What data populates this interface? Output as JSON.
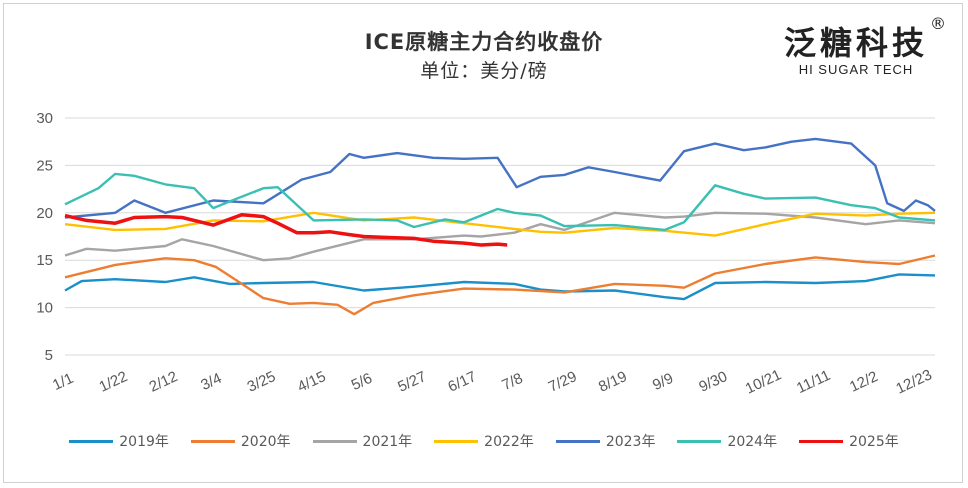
{
  "title": "ICE原糖主力合约收盘价",
  "subtitle": "单位：美分/磅",
  "brand": {
    "name": "泛糖科技",
    "sub": "HI SUGAR TECH",
    "reg": "®"
  },
  "chart_data": {
    "type": "line",
    "x_tick_labels": [
      "1/1",
      "1/22",
      "2/12",
      "3/4",
      "3/25",
      "4/15",
      "5/6",
      "5/27",
      "6/17",
      "7/8",
      "7/29",
      "8/19",
      "9/9",
      "9/30",
      "10/21",
      "11/11",
      "12/2",
      "12/23"
    ],
    "x_tick_days": [
      1,
      22,
      43,
      63,
      84,
      105,
      126,
      147,
      168,
      189,
      210,
      231,
      252,
      273,
      294,
      315,
      336,
      357
    ],
    "ylim": [
      5,
      30
    ],
    "yticks": [
      5,
      10,
      15,
      20,
      25,
      30
    ],
    "grid": true,
    "legend_position": "bottom",
    "series": [
      {
        "name": "2019年",
        "color": "#1a8fc9",
        "points": [
          [
            1,
            11.8
          ],
          [
            8,
            12.8
          ],
          [
            22,
            13.0
          ],
          [
            43,
            12.7
          ],
          [
            55,
            13.2
          ],
          [
            70,
            12.5
          ],
          [
            84,
            12.6
          ],
          [
            105,
            12.7
          ],
          [
            126,
            11.8
          ],
          [
            147,
            12.2
          ],
          [
            168,
            12.7
          ],
          [
            189,
            12.5
          ],
          [
            200,
            11.9
          ],
          [
            210,
            11.7
          ],
          [
            231,
            11.8
          ],
          [
            252,
            11.1
          ],
          [
            260,
            10.9
          ],
          [
            273,
            12.6
          ],
          [
            294,
            12.7
          ],
          [
            315,
            12.6
          ],
          [
            336,
            12.8
          ],
          [
            350,
            13.5
          ],
          [
            365,
            13.4
          ]
        ]
      },
      {
        "name": "2020年",
        "color": "#ed7d31",
        "points": [
          [
            1,
            13.2
          ],
          [
            22,
            14.5
          ],
          [
            43,
            15.2
          ],
          [
            55,
            15.0
          ],
          [
            64,
            14.3
          ],
          [
            75,
            12.5
          ],
          [
            84,
            11.0
          ],
          [
            95,
            10.4
          ],
          [
            105,
            10.5
          ],
          [
            115,
            10.3
          ],
          [
            122,
            9.3
          ],
          [
            130,
            10.5
          ],
          [
            147,
            11.3
          ],
          [
            168,
            12.0
          ],
          [
            189,
            11.9
          ],
          [
            210,
            11.6
          ],
          [
            231,
            12.5
          ],
          [
            252,
            12.3
          ],
          [
            260,
            12.1
          ],
          [
            273,
            13.6
          ],
          [
            294,
            14.6
          ],
          [
            315,
            15.3
          ],
          [
            336,
            14.8
          ],
          [
            350,
            14.6
          ],
          [
            365,
            15.5
          ]
        ]
      },
      {
        "name": "2021年",
        "color": "#a5a5a5",
        "points": [
          [
            1,
            15.5
          ],
          [
            10,
            16.2
          ],
          [
            22,
            16.0
          ],
          [
            43,
            16.5
          ],
          [
            50,
            17.2
          ],
          [
            63,
            16.5
          ],
          [
            84,
            15.0
          ],
          [
            95,
            15.2
          ],
          [
            105,
            15.9
          ],
          [
            126,
            17.2
          ],
          [
            147,
            17.2
          ],
          [
            168,
            17.6
          ],
          [
            175,
            17.5
          ],
          [
            189,
            17.9
          ],
          [
            200,
            18.8
          ],
          [
            210,
            18.2
          ],
          [
            231,
            20.0
          ],
          [
            252,
            19.5
          ],
          [
            260,
            19.6
          ],
          [
            273,
            20.0
          ],
          [
            294,
            19.9
          ],
          [
            315,
            19.5
          ],
          [
            336,
            18.8
          ],
          [
            350,
            19.2
          ],
          [
            365,
            18.9
          ]
        ]
      },
      {
        "name": "2022年",
        "color": "#ffc000",
        "points": [
          [
            1,
            18.8
          ],
          [
            22,
            18.2
          ],
          [
            43,
            18.3
          ],
          [
            63,
            19.2
          ],
          [
            84,
            19.1
          ],
          [
            105,
            20.0
          ],
          [
            126,
            19.2
          ],
          [
            147,
            19.5
          ],
          [
            168,
            18.9
          ],
          [
            189,
            18.3
          ],
          [
            200,
            18.0
          ],
          [
            210,
            17.9
          ],
          [
            231,
            18.4
          ],
          [
            252,
            18.1
          ],
          [
            273,
            17.6
          ],
          [
            294,
            18.8
          ],
          [
            315,
            19.9
          ],
          [
            336,
            19.7
          ],
          [
            350,
            19.9
          ],
          [
            365,
            20.0
          ]
        ]
      },
      {
        "name": "2023年",
        "color": "#4472c4",
        "points": [
          [
            1,
            19.5
          ],
          [
            22,
            20.0
          ],
          [
            30,
            21.3
          ],
          [
            43,
            20.0
          ],
          [
            63,
            21.3
          ],
          [
            84,
            21.0
          ],
          [
            100,
            23.5
          ],
          [
            112,
            24.3
          ],
          [
            120,
            26.2
          ],
          [
            126,
            25.8
          ],
          [
            140,
            26.3
          ],
          [
            155,
            25.8
          ],
          [
            168,
            25.7
          ],
          [
            182,
            25.8
          ],
          [
            190,
            22.7
          ],
          [
            200,
            23.8
          ],
          [
            210,
            24.0
          ],
          [
            220,
            24.8
          ],
          [
            231,
            24.3
          ],
          [
            250,
            23.4
          ],
          [
            260,
            26.5
          ],
          [
            273,
            27.3
          ],
          [
            285,
            26.6
          ],
          [
            294,
            26.9
          ],
          [
            305,
            27.5
          ],
          [
            315,
            27.8
          ],
          [
            330,
            27.3
          ],
          [
            340,
            25.0
          ],
          [
            345,
            21.0
          ],
          [
            352,
            20.2
          ],
          [
            357,
            21.3
          ],
          [
            362,
            20.8
          ],
          [
            365,
            20.2
          ]
        ]
      },
      {
        "name": "2024年",
        "color": "#3ac0b2",
        "points": [
          [
            1,
            20.9
          ],
          [
            15,
            22.6
          ],
          [
            22,
            24.1
          ],
          [
            30,
            23.9
          ],
          [
            43,
            23.0
          ],
          [
            55,
            22.6
          ],
          [
            63,
            20.5
          ],
          [
            70,
            21.2
          ],
          [
            84,
            22.6
          ],
          [
            90,
            22.7
          ],
          [
            105,
            19.2
          ],
          [
            126,
            19.3
          ],
          [
            140,
            19.2
          ],
          [
            147,
            18.5
          ],
          [
            160,
            19.3
          ],
          [
            168,
            19.0
          ],
          [
            182,
            20.4
          ],
          [
            189,
            20.0
          ],
          [
            200,
            19.7
          ],
          [
            210,
            18.6
          ],
          [
            231,
            18.7
          ],
          [
            252,
            18.2
          ],
          [
            260,
            19.0
          ],
          [
            273,
            22.9
          ],
          [
            285,
            22.0
          ],
          [
            294,
            21.5
          ],
          [
            315,
            21.6
          ],
          [
            330,
            20.8
          ],
          [
            340,
            20.5
          ],
          [
            350,
            19.5
          ],
          [
            365,
            19.2
          ]
        ]
      },
      {
        "name": "2025年",
        "color": "#ee1111",
        "points": [
          [
            1,
            19.7
          ],
          [
            10,
            19.2
          ],
          [
            22,
            18.9
          ],
          [
            30,
            19.5
          ],
          [
            43,
            19.6
          ],
          [
            50,
            19.5
          ],
          [
            63,
            18.7
          ],
          [
            75,
            19.8
          ],
          [
            84,
            19.6
          ],
          [
            90,
            18.9
          ],
          [
            98,
            17.9
          ],
          [
            105,
            17.9
          ],
          [
            112,
            18.0
          ],
          [
            120,
            17.7
          ],
          [
            126,
            17.5
          ],
          [
            135,
            17.4
          ],
          [
            147,
            17.3
          ],
          [
            155,
            17.0
          ],
          [
            168,
            16.8
          ],
          [
            175,
            16.6
          ],
          [
            182,
            16.7
          ],
          [
            186,
            16.6
          ]
        ]
      }
    ]
  }
}
